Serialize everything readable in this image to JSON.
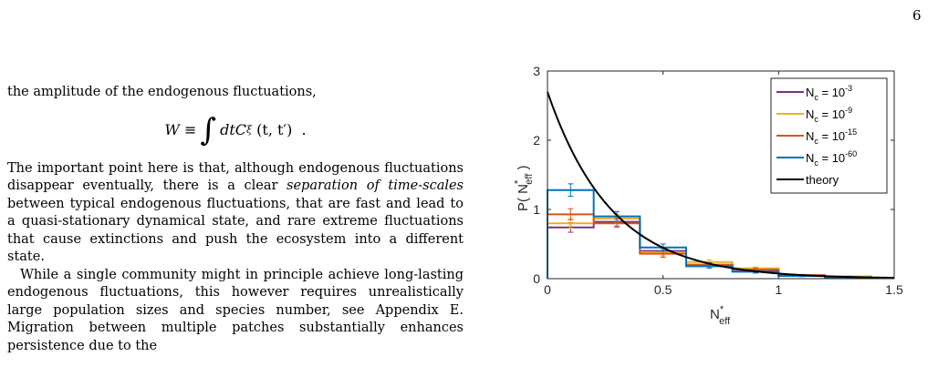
{
  "page_number": "6",
  "body_text": {
    "intro_line": "the amplitude of the endogenous fluctuations,",
    "equation": {
      "lhs": "W ≡",
      "integrand": "dtC",
      "subscript": "ξ",
      "args": "(t, t′)",
      "trailing": "."
    },
    "para1": {
      "before_italic": "The important point here is that, although endogenous fluctuations disappear eventually, there is a clear ",
      "italic": "separation of time-scales",
      "after_italic": " between typical endogenous fluctuations, that are fast and lead to a quasi-stationary dynamical state, and rare extreme fluctuations that cause extinctions and push the ecosystem into a different state."
    },
    "para2": "While a single community might in principle achieve long-lasting endogenous fluctuations, this however requires unrealistically large population sizes and species number, see Appendix E. Migration between multiple patches substantially enhances persistence due to the"
  },
  "chart_data": {
    "type": "histogram",
    "xlabel": "N*eff",
    "ylabel": "P( N*eff )",
    "xlim": [
      0,
      1.5
    ],
    "ylim": [
      0,
      3
    ],
    "xticks": [
      "0",
      "0.5",
      "1",
      "1.5"
    ],
    "yticks": [
      "0",
      "1",
      "2",
      "3"
    ],
    "bin_edges": [
      0,
      0.2,
      0.4,
      0.6,
      0.8,
      1.0,
      1.2,
      1.4,
      1.5
    ],
    "series": [
      {
        "name": "N_c = 10^-3",
        "color": "#7E2F8E",
        "values": [
          0.74,
          0.82,
          0.4,
          0.2,
          0.12,
          0.05,
          0.03,
          0.01
        ],
        "errors": [
          0.07,
          0.06,
          0.04,
          0.03,
          0.02,
          0.01,
          0.01,
          0.005
        ]
      },
      {
        "name": "N_c = 10^-9",
        "color": "#EDB120",
        "values": [
          0.8,
          0.87,
          0.38,
          0.24,
          0.15,
          0.04,
          0.03,
          0.01
        ],
        "errors": [
          0.07,
          0.06,
          0.05,
          0.03,
          0.02,
          0.01,
          0.01,
          0.005
        ]
      },
      {
        "name": "N_c = 10^-15",
        "color": "#D95319",
        "values": [
          0.93,
          0.8,
          0.36,
          0.2,
          0.13,
          0.05,
          0.02,
          0.01
        ],
        "errors": [
          0.08,
          0.06,
          0.05,
          0.03,
          0.02,
          0.01,
          0.01,
          0.005
        ]
      },
      {
        "name": "N_c = 10^-60",
        "color": "#0072BD",
        "values": [
          1.28,
          0.9,
          0.45,
          0.18,
          0.1,
          0.04,
          0.02,
          0.01
        ],
        "errors": [
          0.09,
          0.07,
          0.05,
          0.03,
          0.02,
          0.01,
          0.01,
          0.005
        ]
      }
    ],
    "theory": {
      "name": "theory",
      "color": "#000000",
      "function": "2.7·exp(-3.6·x)"
    },
    "legend": {
      "placement": "top-right",
      "entries": [
        {
          "base": "N",
          "sub": "c",
          "mid": " = 10",
          "sup": "-3"
        },
        {
          "base": "N",
          "sub": "c",
          "mid": " = 10",
          "sup": "-9"
        },
        {
          "base": "N",
          "sub": "c",
          "mid": " = 10",
          "sup": "-15"
        },
        {
          "base": "N",
          "sub": "c",
          "mid": " = 10",
          "sup": "-60"
        },
        {
          "base": "theory",
          "sub": "",
          "mid": "",
          "sup": ""
        }
      ]
    }
  }
}
